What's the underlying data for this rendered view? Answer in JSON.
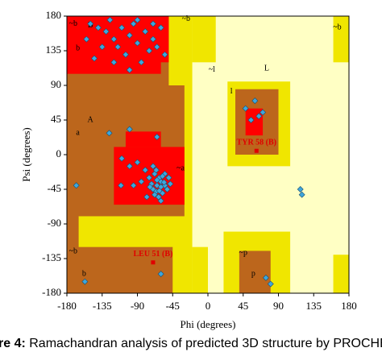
{
  "chart_data": {
    "type": "scatter",
    "xlabel": "Phi (degrees)",
    "ylabel": "Psi (degrees)",
    "xlim": [
      -180,
      180
    ],
    "ylim": [
      -180,
      180
    ],
    "xticks": [
      -180,
      -135,
      -90,
      -45,
      0,
      45,
      90,
      135,
      180
    ],
    "yticks": [
      -180,
      -135,
      -90,
      -45,
      0,
      45,
      90,
      135,
      180
    ],
    "color": "#3ea6dc",
    "x": [
      -150,
      -140,
      -130,
      -125,
      -120,
      -115,
      -110,
      -105,
      -100,
      -95,
      -90,
      -85,
      -80,
      -75,
      -70,
      -65,
      -60,
      -55,
      -120,
      -135,
      -145,
      -155,
      -100,
      -90,
      -70,
      -126,
      -100,
      -65,
      -111,
      -168,
      -70,
      -65,
      -60,
      -55,
      -62,
      -68,
      -58,
      -50,
      -72,
      -66,
      -60,
      -55,
      -75,
      -63,
      -80,
      -85,
      -90,
      -70,
      -60,
      -52,
      -48,
      -65,
      -58,
      -62,
      -68,
      -74,
      -56,
      -66,
      -100,
      -95,
      -110,
      -78,
      -157,
      -60,
      48,
      55,
      65,
      60,
      70,
      118,
      120,
      74,
      80
    ],
    "values": [
      170,
      165,
      160,
      175,
      150,
      140,
      165,
      130,
      155,
      170,
      145,
      120,
      160,
      135,
      150,
      140,
      165,
      130,
      120,
      140,
      125,
      150,
      110,
      175,
      170,
      28,
      33,
      23,
      -40,
      -40,
      -45,
      -40,
      -35,
      -40,
      -30,
      -25,
      -50,
      -30,
      -38,
      -48,
      -42,
      -25,
      -30,
      -55,
      -20,
      -35,
      -10,
      -15,
      -60,
      -45,
      -38,
      -33,
      -28,
      -47,
      -52,
      -42,
      -36,
      -20,
      -15,
      -40,
      -5,
      -55,
      -165,
      -155,
      60,
      45,
      50,
      70,
      55,
      -45,
      -52,
      -160,
      -168
    ],
    "highlighted": {
      "x": [
        62,
        -70
      ],
      "y": [
        5,
        -140
      ],
      "labels": [
        "TYR 58 (B)",
        "LEU 51 (B)"
      ],
      "color": "#e00000"
    },
    "region_labels": [
      "B",
      "b",
      "A",
      "a",
      "L",
      "l",
      "~b",
      "~a",
      "~l",
      "~p",
      "p",
      "~b",
      "~b",
      "~b",
      "b"
    ],
    "caption_bold": "re 4:",
    "caption": " Ramachandran analysis of predicted 3D structure by PROCHECK"
  }
}
